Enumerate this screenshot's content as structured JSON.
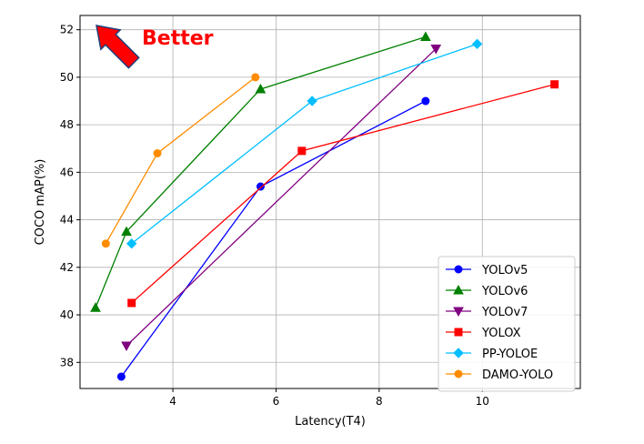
{
  "chart_data": {
    "type": "line",
    "title": "",
    "xlabel": "Latency(T4)",
    "ylabel": "COCO mAP(%)",
    "xlim": [
      2.2,
      11.9
    ],
    "ylim": [
      36.9,
      52.6
    ],
    "xticks": [
      4,
      6,
      8,
      10
    ],
    "yticks": [
      38,
      40,
      42,
      44,
      46,
      48,
      50,
      52
    ],
    "grid": true,
    "legend_position": "lower-right",
    "annotation": {
      "text": "Better",
      "color": "#ff0000",
      "arrow": "up-left",
      "position": "top-left"
    },
    "series": [
      {
        "name": "YOLOv5",
        "color": "#0000ff",
        "marker": "circle",
        "x": [
          3.0,
          5.7,
          8.9
        ],
        "y": [
          37.4,
          45.4,
          49.0
        ]
      },
      {
        "name": "YOLOv6",
        "color": "#008000",
        "marker": "triangle-up",
        "x": [
          2.5,
          3.1,
          5.7,
          8.9
        ],
        "y": [
          40.3,
          43.5,
          49.5,
          51.7
        ]
      },
      {
        "name": "YOLOv7",
        "color": "#800080",
        "marker": "triangle-down",
        "x": [
          3.1,
          9.1
        ],
        "y": [
          38.7,
          51.2
        ]
      },
      {
        "name": "YOLOX",
        "color": "#ff0000",
        "marker": "square",
        "x": [
          3.2,
          6.5,
          11.4
        ],
        "y": [
          40.5,
          46.9,
          49.7
        ]
      },
      {
        "name": "PP-YOLOE",
        "color": "#00bfff",
        "marker": "diamond",
        "x": [
          3.2,
          6.7,
          9.9
        ],
        "y": [
          43.0,
          49.0,
          51.4
        ]
      },
      {
        "name": "DAMO-YOLO",
        "color": "#ff8c00",
        "marker": "circle",
        "x": [
          2.7,
          3.7,
          5.6
        ],
        "y": [
          43.0,
          46.8,
          50.0
        ]
      }
    ]
  }
}
